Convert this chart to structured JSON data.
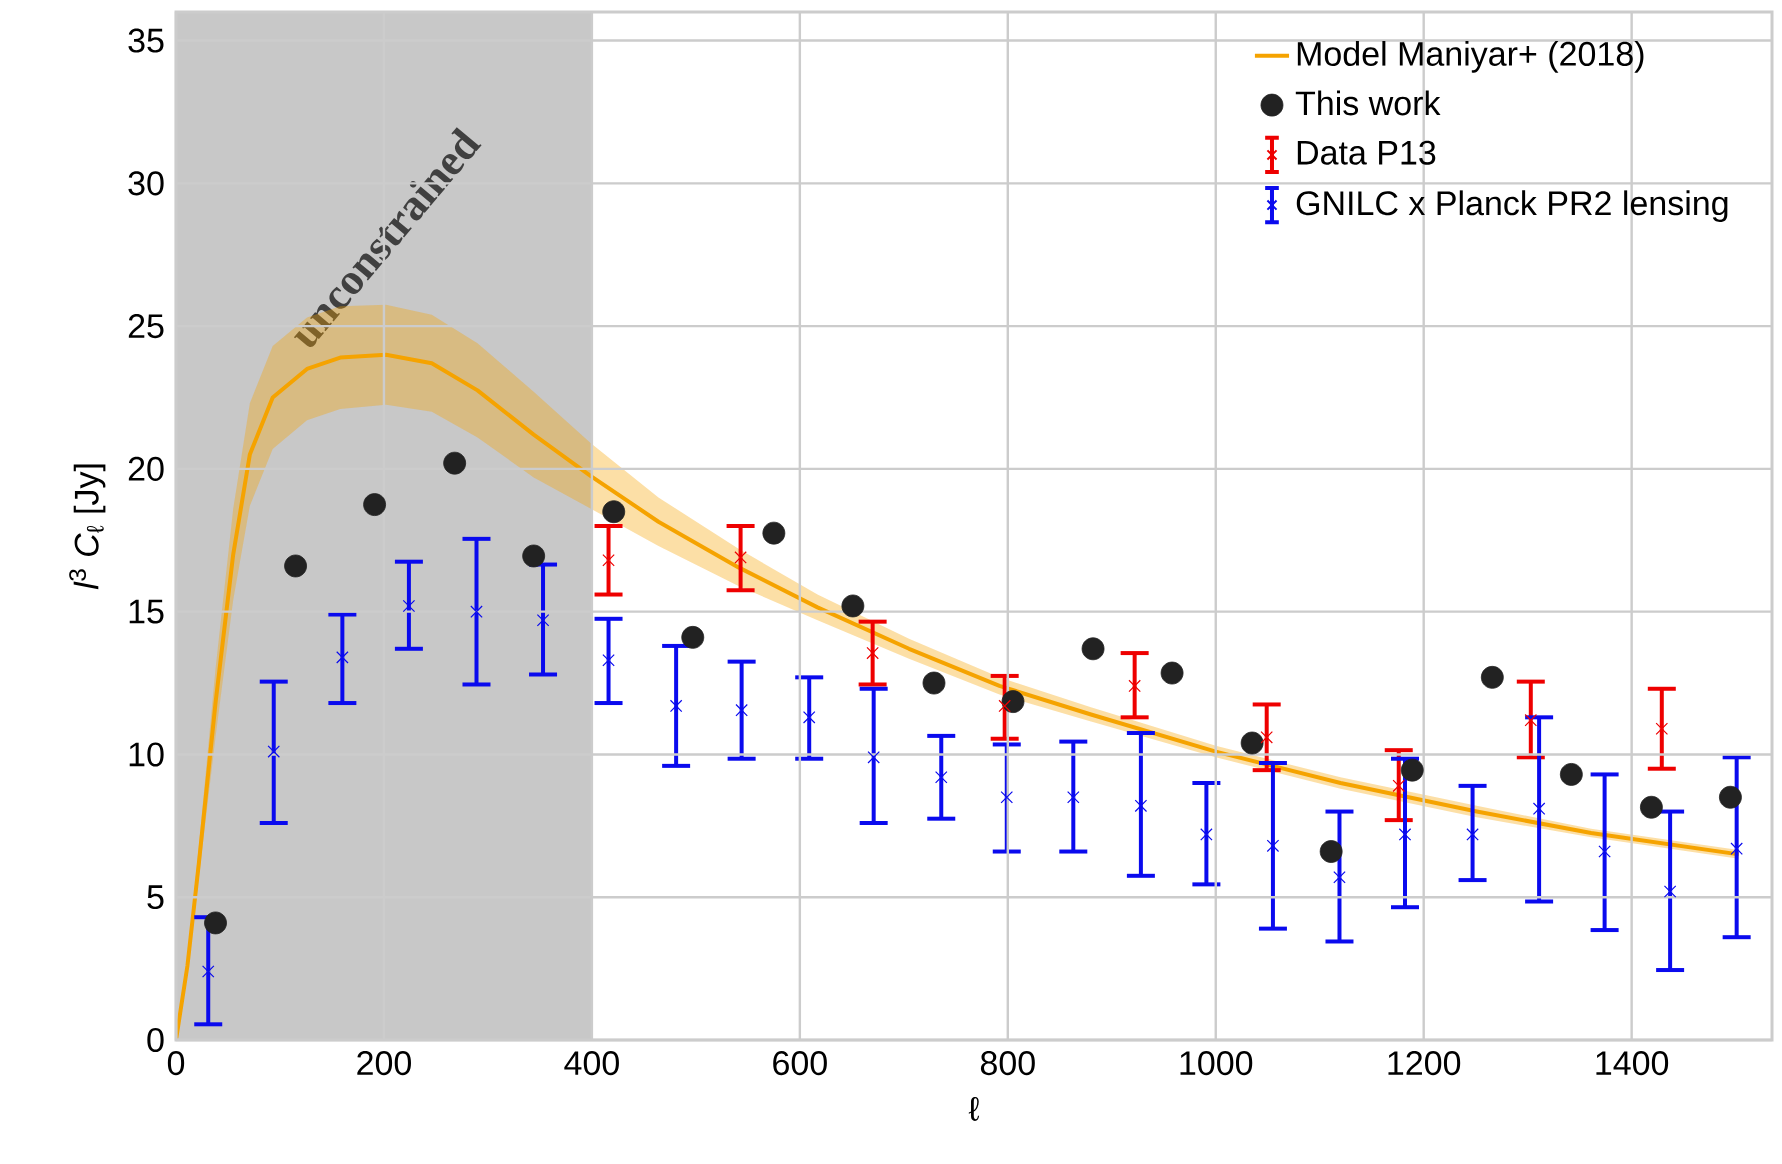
{
  "chart_data": {
    "type": "scatter",
    "xlabel": "ℓ",
    "ylabel": "*l*$^{3}$ *C*$_{ℓ}$ [Jy]",
    "xlim": [
      0,
      1535
    ],
    "ylim": [
      0,
      36
    ],
    "xticks": [
      0,
      200,
      400,
      600,
      800,
      1000,
      1200,
      1400
    ],
    "yticks": [
      0,
      5,
      10,
      15,
      20,
      25,
      30,
      35
    ],
    "grid": true,
    "legend": "top right",
    "bands": [
      {
        "axis": "x",
        "from": 0,
        "to": 400,
        "label": "unconstrained",
        "color": "#c8c8c8"
      }
    ],
    "series": [
      {
        "name": "Model Maniyar+ (2018)",
        "type": "line",
        "color": "#f5a300",
        "marker": "none",
        "x": [
          0,
          11,
          22,
          38,
          55,
          71,
          93,
          126,
          158,
          202,
          246,
          290,
          344,
          399,
          464,
          541,
          617,
          705,
          792,
          880,
          1000,
          1120,
          1251,
          1361,
          1503
        ],
        "values": [
          0,
          2.6,
          6.2,
          11.8,
          17,
          20.5,
          22.5,
          23.5,
          23.9,
          24.0,
          23.7,
          22.75,
          21.2,
          19.75,
          18.15,
          16.55,
          15.15,
          13.7,
          12.4,
          11.4,
          10.1,
          9.0,
          8.0,
          7.25,
          6.5
        ],
        "upper": [
          0,
          2.8,
          6.8,
          13,
          18.6,
          22.3,
          24.3,
          25.3,
          25.7,
          25.75,
          25.4,
          24.4,
          22.7,
          20.9,
          19.0,
          17.2,
          15.6,
          14.05,
          12.7,
          11.65,
          10.3,
          9.2,
          8.2,
          7.4,
          6.65
        ],
        "lower": [
          0,
          2.4,
          5.7,
          10.6,
          15.4,
          18.7,
          20.7,
          21.7,
          22.1,
          22.25,
          22.0,
          21.1,
          19.7,
          18.6,
          17.3,
          15.9,
          14.7,
          13.35,
          12.1,
          11.15,
          9.9,
          8.8,
          7.8,
          7.1,
          6.35
        ]
      },
      {
        "name": "This work",
        "color": "#222222",
        "marker": "circle",
        "x": [
          38,
          115,
          191,
          268,
          344,
          421,
          497,
          575,
          651,
          729,
          805,
          882,
          958,
          1035,
          1111,
          1189,
          1266,
          1342,
          1419,
          1495
        ],
        "values": [
          4.1,
          16.6,
          18.75,
          20.2,
          16.95,
          18.5,
          14.1,
          17.75,
          15.2,
          12.5,
          11.85,
          13.7,
          12.85,
          10.4,
          6.6,
          9.45,
          12.7,
          9.3,
          8.15,
          8.5
        ]
      },
      {
        "name": "Data P13",
        "color": "#ee0000",
        "marker": "cross",
        "x": [
          416,
          543,
          670,
          797,
          922,
          1049,
          1176,
          1303,
          1429
        ],
        "values": [
          16.8,
          16.9,
          13.55,
          11.7,
          12.4,
          10.6,
          8.9,
          11.2,
          10.9
        ],
        "errors": [
          [
            15.6,
            18.0
          ],
          [
            15.75,
            18.0
          ],
          [
            12.45,
            14.65
          ],
          [
            10.55,
            12.75
          ],
          [
            11.3,
            13.55
          ],
          [
            9.45,
            11.75
          ],
          [
            7.7,
            10.15
          ],
          [
            9.9,
            12.55
          ],
          [
            9.5,
            12.3
          ]
        ]
      },
      {
        "name": "GNILC x Planck PR2 lensing",
        "color": "#0a0aee",
        "marker": "cross",
        "x": [
          31,
          94,
          160,
          224,
          289,
          353,
          416,
          481,
          544,
          609,
          671,
          736,
          799,
          863,
          928,
          991,
          1055,
          1119,
          1182,
          1247,
          1311,
          1374,
          1437,
          1501
        ],
        "values": [
          2.4,
          10.1,
          13.4,
          15.2,
          15.0,
          14.7,
          13.3,
          11.7,
          11.55,
          11.3,
          9.9,
          9.2,
          8.5,
          8.5,
          8.2,
          7.2,
          6.8,
          5.7,
          7.2,
          7.2,
          8.1,
          6.6,
          5.2,
          6.7
        ],
        "errors": [
          [
            0.55,
            4.3
          ],
          [
            7.6,
            12.55
          ],
          [
            11.8,
            14.9
          ],
          [
            13.7,
            16.75
          ],
          [
            12.45,
            17.55
          ],
          [
            12.8,
            16.65
          ],
          [
            11.8,
            14.75
          ],
          [
            9.6,
            13.8
          ],
          [
            9.85,
            13.25
          ],
          [
            9.85,
            12.7
          ],
          [
            7.6,
            12.3
          ],
          [
            7.75,
            10.65
          ],
          [
            6.6,
            10.35
          ],
          [
            6.6,
            10.45
          ],
          [
            5.75,
            10.75
          ],
          [
            5.45,
            9.0
          ],
          [
            3.9,
            9.7
          ],
          [
            3.45,
            8.0
          ],
          [
            4.65,
            9.85
          ],
          [
            5.6,
            8.9
          ],
          [
            4.85,
            11.3
          ],
          [
            3.85,
            9.3
          ],
          [
            2.45,
            8.0
          ],
          [
            3.6,
            9.9
          ]
        ]
      }
    ]
  }
}
